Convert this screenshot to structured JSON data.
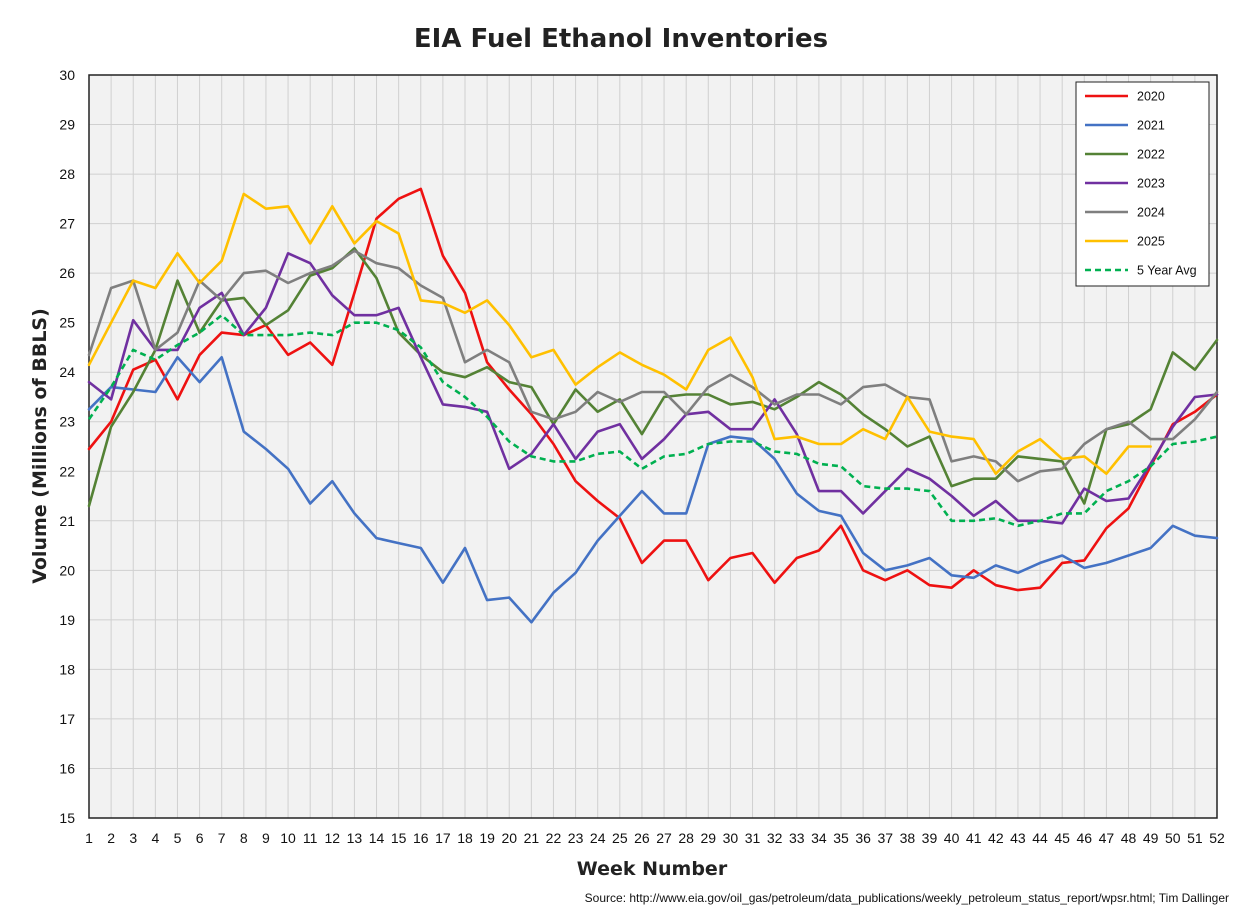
{
  "chart_data": {
    "type": "line",
    "title": "EIA Fuel Ethanol Inventories",
    "xlabel": "Week Number",
    "ylabel": "Volume (Millions of BBLS)",
    "xlim": [
      1,
      52
    ],
    "ylim": [
      15,
      30
    ],
    "x_ticks": [
      1,
      2,
      3,
      4,
      5,
      6,
      7,
      8,
      9,
      10,
      11,
      12,
      13,
      14,
      15,
      16,
      17,
      18,
      19,
      20,
      21,
      22,
      23,
      24,
      25,
      26,
      27,
      28,
      29,
      30,
      31,
      32,
      33,
      34,
      35,
      36,
      37,
      38,
      39,
      40,
      41,
      42,
      43,
      44,
      45,
      46,
      47,
      48,
      49,
      50,
      51,
      52
    ],
    "y_ticks": [
      15,
      16,
      17,
      18,
      19,
      20,
      21,
      22,
      23,
      24,
      25,
      26,
      27,
      28,
      29,
      30
    ],
    "grid": true,
    "legend_position": "top-right",
    "source": "Source: http://www.eia.gov/oil_gas/petroleum/data_publications/weekly_petroleum_status_report/wpsr.html; Tim Dallinger",
    "series": [
      {
        "name": "2020",
        "color": "#ee1111",
        "dash": false,
        "values": [
          22.45,
          23.0,
          24.05,
          24.25,
          23.45,
          24.35,
          24.8,
          24.75,
          24.95,
          24.35,
          24.6,
          24.15,
          25.6,
          27.1,
          27.5,
          27.7,
          26.35,
          25.6,
          24.2,
          23.65,
          23.15,
          22.55,
          21.8,
          21.4,
          21.05,
          20.15,
          20.6,
          20.6,
          19.8,
          20.25,
          20.35,
          19.75,
          20.25,
          20.4,
          20.9,
          20.0,
          19.8,
          20.0,
          19.7,
          19.65,
          20.0,
          19.7,
          19.6,
          19.65,
          20.15,
          20.2,
          20.85,
          21.25,
          22.1,
          22.95,
          23.2,
          23.55
        ]
      },
      {
        "name": "2021",
        "color": "#4472c4",
        "dash": false,
        "values": [
          23.25,
          23.7,
          23.65,
          23.6,
          24.3,
          23.8,
          24.3,
          22.8,
          22.45,
          22.05,
          21.35,
          21.8,
          21.15,
          20.65,
          20.55,
          20.45,
          19.75,
          20.45,
          19.4,
          19.45,
          18.95,
          19.55,
          19.95,
          20.6,
          21.1,
          21.6,
          21.15,
          21.15,
          22.55,
          22.7,
          22.65,
          22.25,
          21.55,
          21.2,
          21.1,
          20.35,
          20.0,
          20.1,
          20.25,
          19.9,
          19.85,
          20.1,
          19.95,
          20.15,
          20.3,
          20.05,
          20.15,
          20.3,
          20.45,
          20.9,
          20.7,
          20.65
        ]
      },
      {
        "name": "2022",
        "color": "#548235",
        "dash": false,
        "values": [
          21.3,
          22.9,
          23.6,
          24.45,
          25.85,
          24.8,
          25.45,
          25.5,
          24.95,
          25.25,
          25.95,
          26.1,
          26.5,
          25.9,
          24.8,
          24.35,
          24.0,
          23.9,
          24.1,
          23.8,
          23.7,
          22.95,
          23.65,
          23.2,
          23.45,
          22.75,
          23.5,
          23.55,
          23.55,
          23.35,
          23.4,
          23.25,
          23.5,
          23.8,
          23.55,
          23.15,
          22.85,
          22.5,
          22.7,
          21.7,
          21.85,
          21.85,
          22.3,
          22.25,
          22.2,
          21.35,
          22.85,
          22.95,
          23.25,
          24.4,
          24.05,
          24.65
        ]
      },
      {
        "name": "2023",
        "color": "#7030a0",
        "dash": false,
        "values": [
          23.8,
          23.45,
          25.05,
          24.45,
          24.45,
          25.3,
          25.6,
          24.75,
          25.3,
          26.4,
          26.2,
          25.55,
          25.15,
          25.15,
          25.3,
          24.3,
          23.35,
          23.3,
          23.2,
          22.05,
          22.35,
          22.95,
          22.25,
          22.8,
          22.95,
          22.25,
          22.65,
          23.15,
          23.2,
          22.85,
          22.85,
          23.45,
          22.75,
          21.6,
          21.6,
          21.15,
          21.6,
          22.05,
          21.85,
          21.5,
          21.1,
          21.4,
          21.0,
          21.0,
          20.95,
          21.65,
          21.4,
          21.45,
          22.15,
          22.9,
          23.5,
          23.55
        ]
      },
      {
        "name": "2024",
        "color": "#7f7f7f",
        "dash": false,
        "values": [
          24.35,
          25.7,
          25.85,
          24.45,
          24.8,
          25.85,
          25.45,
          26.0,
          26.05,
          25.8,
          26.0,
          26.15,
          26.45,
          26.2,
          26.1,
          25.75,
          25.5,
          24.2,
          24.45,
          24.2,
          23.2,
          23.05,
          23.2,
          23.6,
          23.4,
          23.6,
          23.6,
          23.15,
          23.7,
          23.95,
          23.7,
          23.35,
          23.55,
          23.55,
          23.35,
          23.7,
          23.75,
          23.5,
          23.45,
          22.2,
          22.3,
          22.2,
          21.8,
          22.0,
          22.05,
          22.55,
          22.85,
          23.0,
          22.65,
          22.65,
          23.05,
          23.6
        ]
      },
      {
        "name": "2025",
        "color": "#ffc000",
        "dash": false,
        "values": [
          24.15,
          25.0,
          25.85,
          25.7,
          26.4,
          25.8,
          26.25,
          27.6,
          27.3,
          27.35,
          26.6,
          27.35,
          26.6,
          27.05,
          26.8,
          25.45,
          25.4,
          25.2,
          25.45,
          24.95,
          24.3,
          24.45,
          23.75,
          24.1,
          24.4,
          24.15,
          23.95,
          23.65,
          24.45,
          24.7,
          23.9,
          22.65,
          22.7,
          22.55,
          22.55,
          22.85,
          22.65,
          23.5,
          22.8,
          22.7,
          22.65,
          21.95,
          22.4,
          22.65,
          22.25,
          22.3,
          21.95,
          22.5,
          22.5,
          null,
          null,
          null
        ]
      },
      {
        "name": "5 Year Avg",
        "color": "#00b050",
        "dash": true,
        "values": [
          23.05,
          23.7,
          24.45,
          24.25,
          24.55,
          24.8,
          25.15,
          24.75,
          24.75,
          24.75,
          24.8,
          24.75,
          25.0,
          25.0,
          24.85,
          24.5,
          23.8,
          23.5,
          23.1,
          22.6,
          22.3,
          22.2,
          22.2,
          22.35,
          22.4,
          22.05,
          22.3,
          22.35,
          22.55,
          22.6,
          22.6,
          22.4,
          22.35,
          22.15,
          22.1,
          21.7,
          21.65,
          21.65,
          21.6,
          21.0,
          21.0,
          21.05,
          20.9,
          21.0,
          21.15,
          21.15,
          21.6,
          21.8,
          22.1,
          22.55,
          22.6,
          22.7
        ]
      }
    ]
  }
}
